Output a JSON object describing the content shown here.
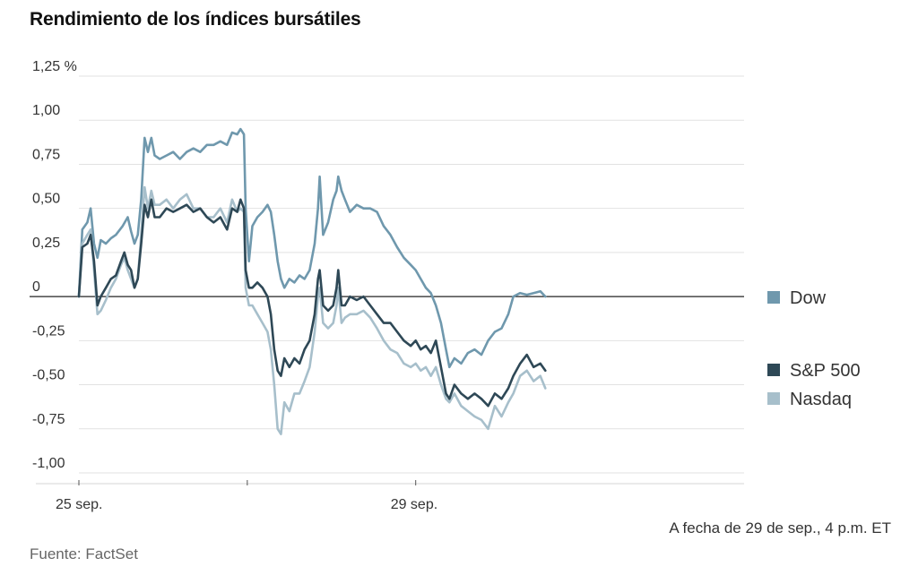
{
  "chart_data": {
    "type": "line",
    "title": "Rendimiento de los índices bursátiles",
    "xlabel": "",
    "ylabel": "",
    "ylim": [
      -1.0,
      1.25
    ],
    "y_ticks": [
      {
        "value": 1.25,
        "label": "1,25 %"
      },
      {
        "value": 1.0,
        "label": "1,00"
      },
      {
        "value": 0.75,
        "label": "0,75"
      },
      {
        "value": 0.5,
        "label": "0,50"
      },
      {
        "value": 0.25,
        "label": "0,25"
      },
      {
        "value": 0,
        "label": "0"
      },
      {
        "value": -0.25,
        "label": "-0,25"
      },
      {
        "value": -0.5,
        "label": "-0,50"
      },
      {
        "value": -0.75,
        "label": "-0,75"
      },
      {
        "value": -1.0,
        "label": "-1,00"
      }
    ],
    "x_domain": [
      0,
      3.95
    ],
    "x_ticks": [
      {
        "value": 0,
        "label": "25 sep."
      },
      {
        "value": 2,
        "label": "29 sep."
      }
    ],
    "x_minor_ticks": [
      1,
      2
    ],
    "grid": true,
    "legend_position": "right",
    "note": "A fecha de 29 de sep., 4 p.m. ET",
    "source": "Fuente: FactSet",
    "series": [
      {
        "name": "Dow",
        "color": "#6f98ad",
        "points": [
          [
            0.0,
            0.0
          ],
          [
            0.02,
            0.38
          ],
          [
            0.05,
            0.42
          ],
          [
            0.07,
            0.5
          ],
          [
            0.09,
            0.3
          ],
          [
            0.11,
            0.22
          ],
          [
            0.13,
            0.32
          ],
          [
            0.16,
            0.3
          ],
          [
            0.19,
            0.33
          ],
          [
            0.22,
            0.35
          ],
          [
            0.26,
            0.4
          ],
          [
            0.29,
            0.45
          ],
          [
            0.31,
            0.37
          ],
          [
            0.33,
            0.3
          ],
          [
            0.35,
            0.35
          ],
          [
            0.37,
            0.55
          ],
          [
            0.39,
            0.9
          ],
          [
            0.41,
            0.82
          ],
          [
            0.43,
            0.9
          ],
          [
            0.45,
            0.8
          ],
          [
            0.48,
            0.78
          ],
          [
            0.52,
            0.8
          ],
          [
            0.56,
            0.82
          ],
          [
            0.6,
            0.78
          ],
          [
            0.64,
            0.82
          ],
          [
            0.68,
            0.84
          ],
          [
            0.72,
            0.82
          ],
          [
            0.76,
            0.86
          ],
          [
            0.8,
            0.86
          ],
          [
            0.84,
            0.88
          ],
          [
            0.88,
            0.86
          ],
          [
            0.91,
            0.93
          ],
          [
            0.94,
            0.92
          ],
          [
            0.96,
            0.95
          ],
          [
            0.98,
            0.92
          ],
          [
            0.99,
            0.5
          ],
          [
            1.01,
            0.2
          ],
          [
            1.03,
            0.4
          ],
          [
            1.06,
            0.45
          ],
          [
            1.09,
            0.48
          ],
          [
            1.12,
            0.52
          ],
          [
            1.14,
            0.48
          ],
          [
            1.16,
            0.35
          ],
          [
            1.18,
            0.2
          ],
          [
            1.2,
            0.1
          ],
          [
            1.22,
            0.05
          ],
          [
            1.25,
            0.1
          ],
          [
            1.28,
            0.08
          ],
          [
            1.31,
            0.12
          ],
          [
            1.34,
            0.1
          ],
          [
            1.37,
            0.15
          ],
          [
            1.4,
            0.3
          ],
          [
            1.42,
            0.5
          ],
          [
            1.43,
            0.68
          ],
          [
            1.45,
            0.35
          ],
          [
            1.48,
            0.42
          ],
          [
            1.51,
            0.55
          ],
          [
            1.53,
            0.6
          ],
          [
            1.54,
            0.68
          ],
          [
            1.56,
            0.6
          ],
          [
            1.58,
            0.55
          ],
          [
            1.61,
            0.48
          ],
          [
            1.65,
            0.52
          ],
          [
            1.69,
            0.5
          ],
          [
            1.73,
            0.5
          ],
          [
            1.77,
            0.48
          ],
          [
            1.81,
            0.4
          ],
          [
            1.85,
            0.35
          ],
          [
            1.89,
            0.28
          ],
          [
            1.93,
            0.22
          ],
          [
            1.97,
            0.18
          ],
          [
            2.0,
            0.15
          ],
          [
            2.03,
            0.1
          ],
          [
            2.06,
            0.05
          ],
          [
            2.09,
            0.02
          ],
          [
            2.12,
            -0.05
          ],
          [
            2.15,
            -0.15
          ],
          [
            2.18,
            -0.3
          ],
          [
            2.2,
            -0.4
          ],
          [
            2.23,
            -0.35
          ],
          [
            2.27,
            -0.38
          ],
          [
            2.31,
            -0.32
          ],
          [
            2.35,
            -0.3
          ],
          [
            2.39,
            -0.33
          ],
          [
            2.43,
            -0.25
          ],
          [
            2.47,
            -0.2
          ],
          [
            2.51,
            -0.18
          ],
          [
            2.55,
            -0.1
          ],
          [
            2.58,
            0.0
          ],
          [
            2.62,
            0.02
          ],
          [
            2.66,
            0.01
          ],
          [
            2.7,
            0.02
          ],
          [
            2.74,
            0.03
          ],
          [
            2.77,
            0.0
          ]
        ]
      },
      {
        "name": "S&P 500",
        "color": "#2e4856",
        "points": [
          [
            0.0,
            0.0
          ],
          [
            0.02,
            0.28
          ],
          [
            0.05,
            0.3
          ],
          [
            0.07,
            0.35
          ],
          [
            0.09,
            0.2
          ],
          [
            0.11,
            -0.05
          ],
          [
            0.13,
            0.0
          ],
          [
            0.16,
            0.05
          ],
          [
            0.19,
            0.1
          ],
          [
            0.22,
            0.12
          ],
          [
            0.25,
            0.2
          ],
          [
            0.27,
            0.25
          ],
          [
            0.29,
            0.18
          ],
          [
            0.31,
            0.15
          ],
          [
            0.33,
            0.05
          ],
          [
            0.35,
            0.1
          ],
          [
            0.37,
            0.3
          ],
          [
            0.39,
            0.52
          ],
          [
            0.41,
            0.45
          ],
          [
            0.43,
            0.55
          ],
          [
            0.45,
            0.45
          ],
          [
            0.48,
            0.45
          ],
          [
            0.52,
            0.5
          ],
          [
            0.56,
            0.48
          ],
          [
            0.6,
            0.5
          ],
          [
            0.64,
            0.52
          ],
          [
            0.68,
            0.48
          ],
          [
            0.72,
            0.5
          ],
          [
            0.76,
            0.45
          ],
          [
            0.8,
            0.42
          ],
          [
            0.84,
            0.45
          ],
          [
            0.88,
            0.38
          ],
          [
            0.91,
            0.5
          ],
          [
            0.94,
            0.48
          ],
          [
            0.96,
            0.55
          ],
          [
            0.98,
            0.5
          ],
          [
            0.99,
            0.15
          ],
          [
            1.01,
            0.05
          ],
          [
            1.03,
            0.05
          ],
          [
            1.06,
            0.08
          ],
          [
            1.09,
            0.05
          ],
          [
            1.12,
            0.0
          ],
          [
            1.14,
            -0.1
          ],
          [
            1.16,
            -0.3
          ],
          [
            1.18,
            -0.42
          ],
          [
            1.2,
            -0.45
          ],
          [
            1.22,
            -0.35
          ],
          [
            1.25,
            -0.4
          ],
          [
            1.28,
            -0.35
          ],
          [
            1.31,
            -0.38
          ],
          [
            1.34,
            -0.3
          ],
          [
            1.37,
            -0.25
          ],
          [
            1.4,
            -0.1
          ],
          [
            1.42,
            0.1
          ],
          [
            1.43,
            0.15
          ],
          [
            1.45,
            -0.05
          ],
          [
            1.48,
            -0.08
          ],
          [
            1.51,
            -0.05
          ],
          [
            1.53,
            0.05
          ],
          [
            1.54,
            0.15
          ],
          [
            1.56,
            -0.05
          ],
          [
            1.58,
            -0.05
          ],
          [
            1.61,
            0.0
          ],
          [
            1.65,
            -0.02
          ],
          [
            1.69,
            0.0
          ],
          [
            1.73,
            -0.05
          ],
          [
            1.77,
            -0.1
          ],
          [
            1.81,
            -0.15
          ],
          [
            1.85,
            -0.15
          ],
          [
            1.89,
            -0.2
          ],
          [
            1.93,
            -0.25
          ],
          [
            1.97,
            -0.28
          ],
          [
            2.0,
            -0.25
          ],
          [
            2.03,
            -0.3
          ],
          [
            2.06,
            -0.28
          ],
          [
            2.09,
            -0.32
          ],
          [
            2.12,
            -0.25
          ],
          [
            2.15,
            -0.4
          ],
          [
            2.18,
            -0.55
          ],
          [
            2.2,
            -0.58
          ],
          [
            2.23,
            -0.5
          ],
          [
            2.27,
            -0.55
          ],
          [
            2.31,
            -0.58
          ],
          [
            2.35,
            -0.55
          ],
          [
            2.39,
            -0.58
          ],
          [
            2.43,
            -0.62
          ],
          [
            2.47,
            -0.55
          ],
          [
            2.51,
            -0.58
          ],
          [
            2.55,
            -0.52
          ],
          [
            2.58,
            -0.45
          ],
          [
            2.62,
            -0.38
          ],
          [
            2.66,
            -0.33
          ],
          [
            2.7,
            -0.4
          ],
          [
            2.74,
            -0.38
          ],
          [
            2.77,
            -0.42
          ]
        ]
      },
      {
        "name": "Nasdaq",
        "color": "#a7bfcb",
        "points": [
          [
            0.0,
            0.0
          ],
          [
            0.02,
            0.3
          ],
          [
            0.05,
            0.35
          ],
          [
            0.07,
            0.38
          ],
          [
            0.09,
            0.15
          ],
          [
            0.11,
            -0.1
          ],
          [
            0.13,
            -0.08
          ],
          [
            0.16,
            -0.02
          ],
          [
            0.19,
            0.05
          ],
          [
            0.22,
            0.1
          ],
          [
            0.25,
            0.18
          ],
          [
            0.27,
            0.22
          ],
          [
            0.29,
            0.15
          ],
          [
            0.31,
            0.1
          ],
          [
            0.33,
            0.05
          ],
          [
            0.35,
            0.1
          ],
          [
            0.37,
            0.35
          ],
          [
            0.39,
            0.62
          ],
          [
            0.41,
            0.5
          ],
          [
            0.43,
            0.6
          ],
          [
            0.45,
            0.52
          ],
          [
            0.48,
            0.52
          ],
          [
            0.52,
            0.55
          ],
          [
            0.56,
            0.5
          ],
          [
            0.6,
            0.55
          ],
          [
            0.64,
            0.58
          ],
          [
            0.68,
            0.5
          ],
          [
            0.72,
            0.5
          ],
          [
            0.76,
            0.45
          ],
          [
            0.8,
            0.45
          ],
          [
            0.84,
            0.5
          ],
          [
            0.88,
            0.42
          ],
          [
            0.91,
            0.55
          ],
          [
            0.94,
            0.48
          ],
          [
            0.96,
            0.5
          ],
          [
            0.98,
            0.48
          ],
          [
            0.99,
            0.05
          ],
          [
            1.01,
            -0.05
          ],
          [
            1.03,
            -0.05
          ],
          [
            1.06,
            -0.1
          ],
          [
            1.09,
            -0.15
          ],
          [
            1.12,
            -0.2
          ],
          [
            1.14,
            -0.3
          ],
          [
            1.16,
            -0.5
          ],
          [
            1.18,
            -0.75
          ],
          [
            1.2,
            -0.78
          ],
          [
            1.22,
            -0.6
          ],
          [
            1.25,
            -0.65
          ],
          [
            1.28,
            -0.55
          ],
          [
            1.31,
            -0.55
          ],
          [
            1.34,
            -0.48
          ],
          [
            1.37,
            -0.4
          ],
          [
            1.4,
            -0.2
          ],
          [
            1.42,
            0.0
          ],
          [
            1.43,
            0.05
          ],
          [
            1.45,
            -0.15
          ],
          [
            1.48,
            -0.18
          ],
          [
            1.51,
            -0.15
          ],
          [
            1.53,
            -0.05
          ],
          [
            1.54,
            0.05
          ],
          [
            1.56,
            -0.15
          ],
          [
            1.58,
            -0.12
          ],
          [
            1.61,
            -0.1
          ],
          [
            1.65,
            -0.1
          ],
          [
            1.69,
            -0.08
          ],
          [
            1.73,
            -0.12
          ],
          [
            1.77,
            -0.18
          ],
          [
            1.81,
            -0.25
          ],
          [
            1.85,
            -0.3
          ],
          [
            1.89,
            -0.32
          ],
          [
            1.93,
            -0.38
          ],
          [
            1.97,
            -0.4
          ],
          [
            2.0,
            -0.38
          ],
          [
            2.03,
            -0.42
          ],
          [
            2.06,
            -0.4
          ],
          [
            2.09,
            -0.45
          ],
          [
            2.12,
            -0.4
          ],
          [
            2.15,
            -0.5
          ],
          [
            2.18,
            -0.58
          ],
          [
            2.2,
            -0.6
          ],
          [
            2.23,
            -0.55
          ],
          [
            2.27,
            -0.62
          ],
          [
            2.31,
            -0.65
          ],
          [
            2.35,
            -0.68
          ],
          [
            2.39,
            -0.7
          ],
          [
            2.43,
            -0.75
          ],
          [
            2.47,
            -0.62
          ],
          [
            2.51,
            -0.68
          ],
          [
            2.55,
            -0.6
          ],
          [
            2.58,
            -0.55
          ],
          [
            2.62,
            -0.45
          ],
          [
            2.66,
            -0.42
          ],
          [
            2.7,
            -0.48
          ],
          [
            2.74,
            -0.45
          ],
          [
            2.77,
            -0.52
          ]
        ]
      }
    ]
  }
}
